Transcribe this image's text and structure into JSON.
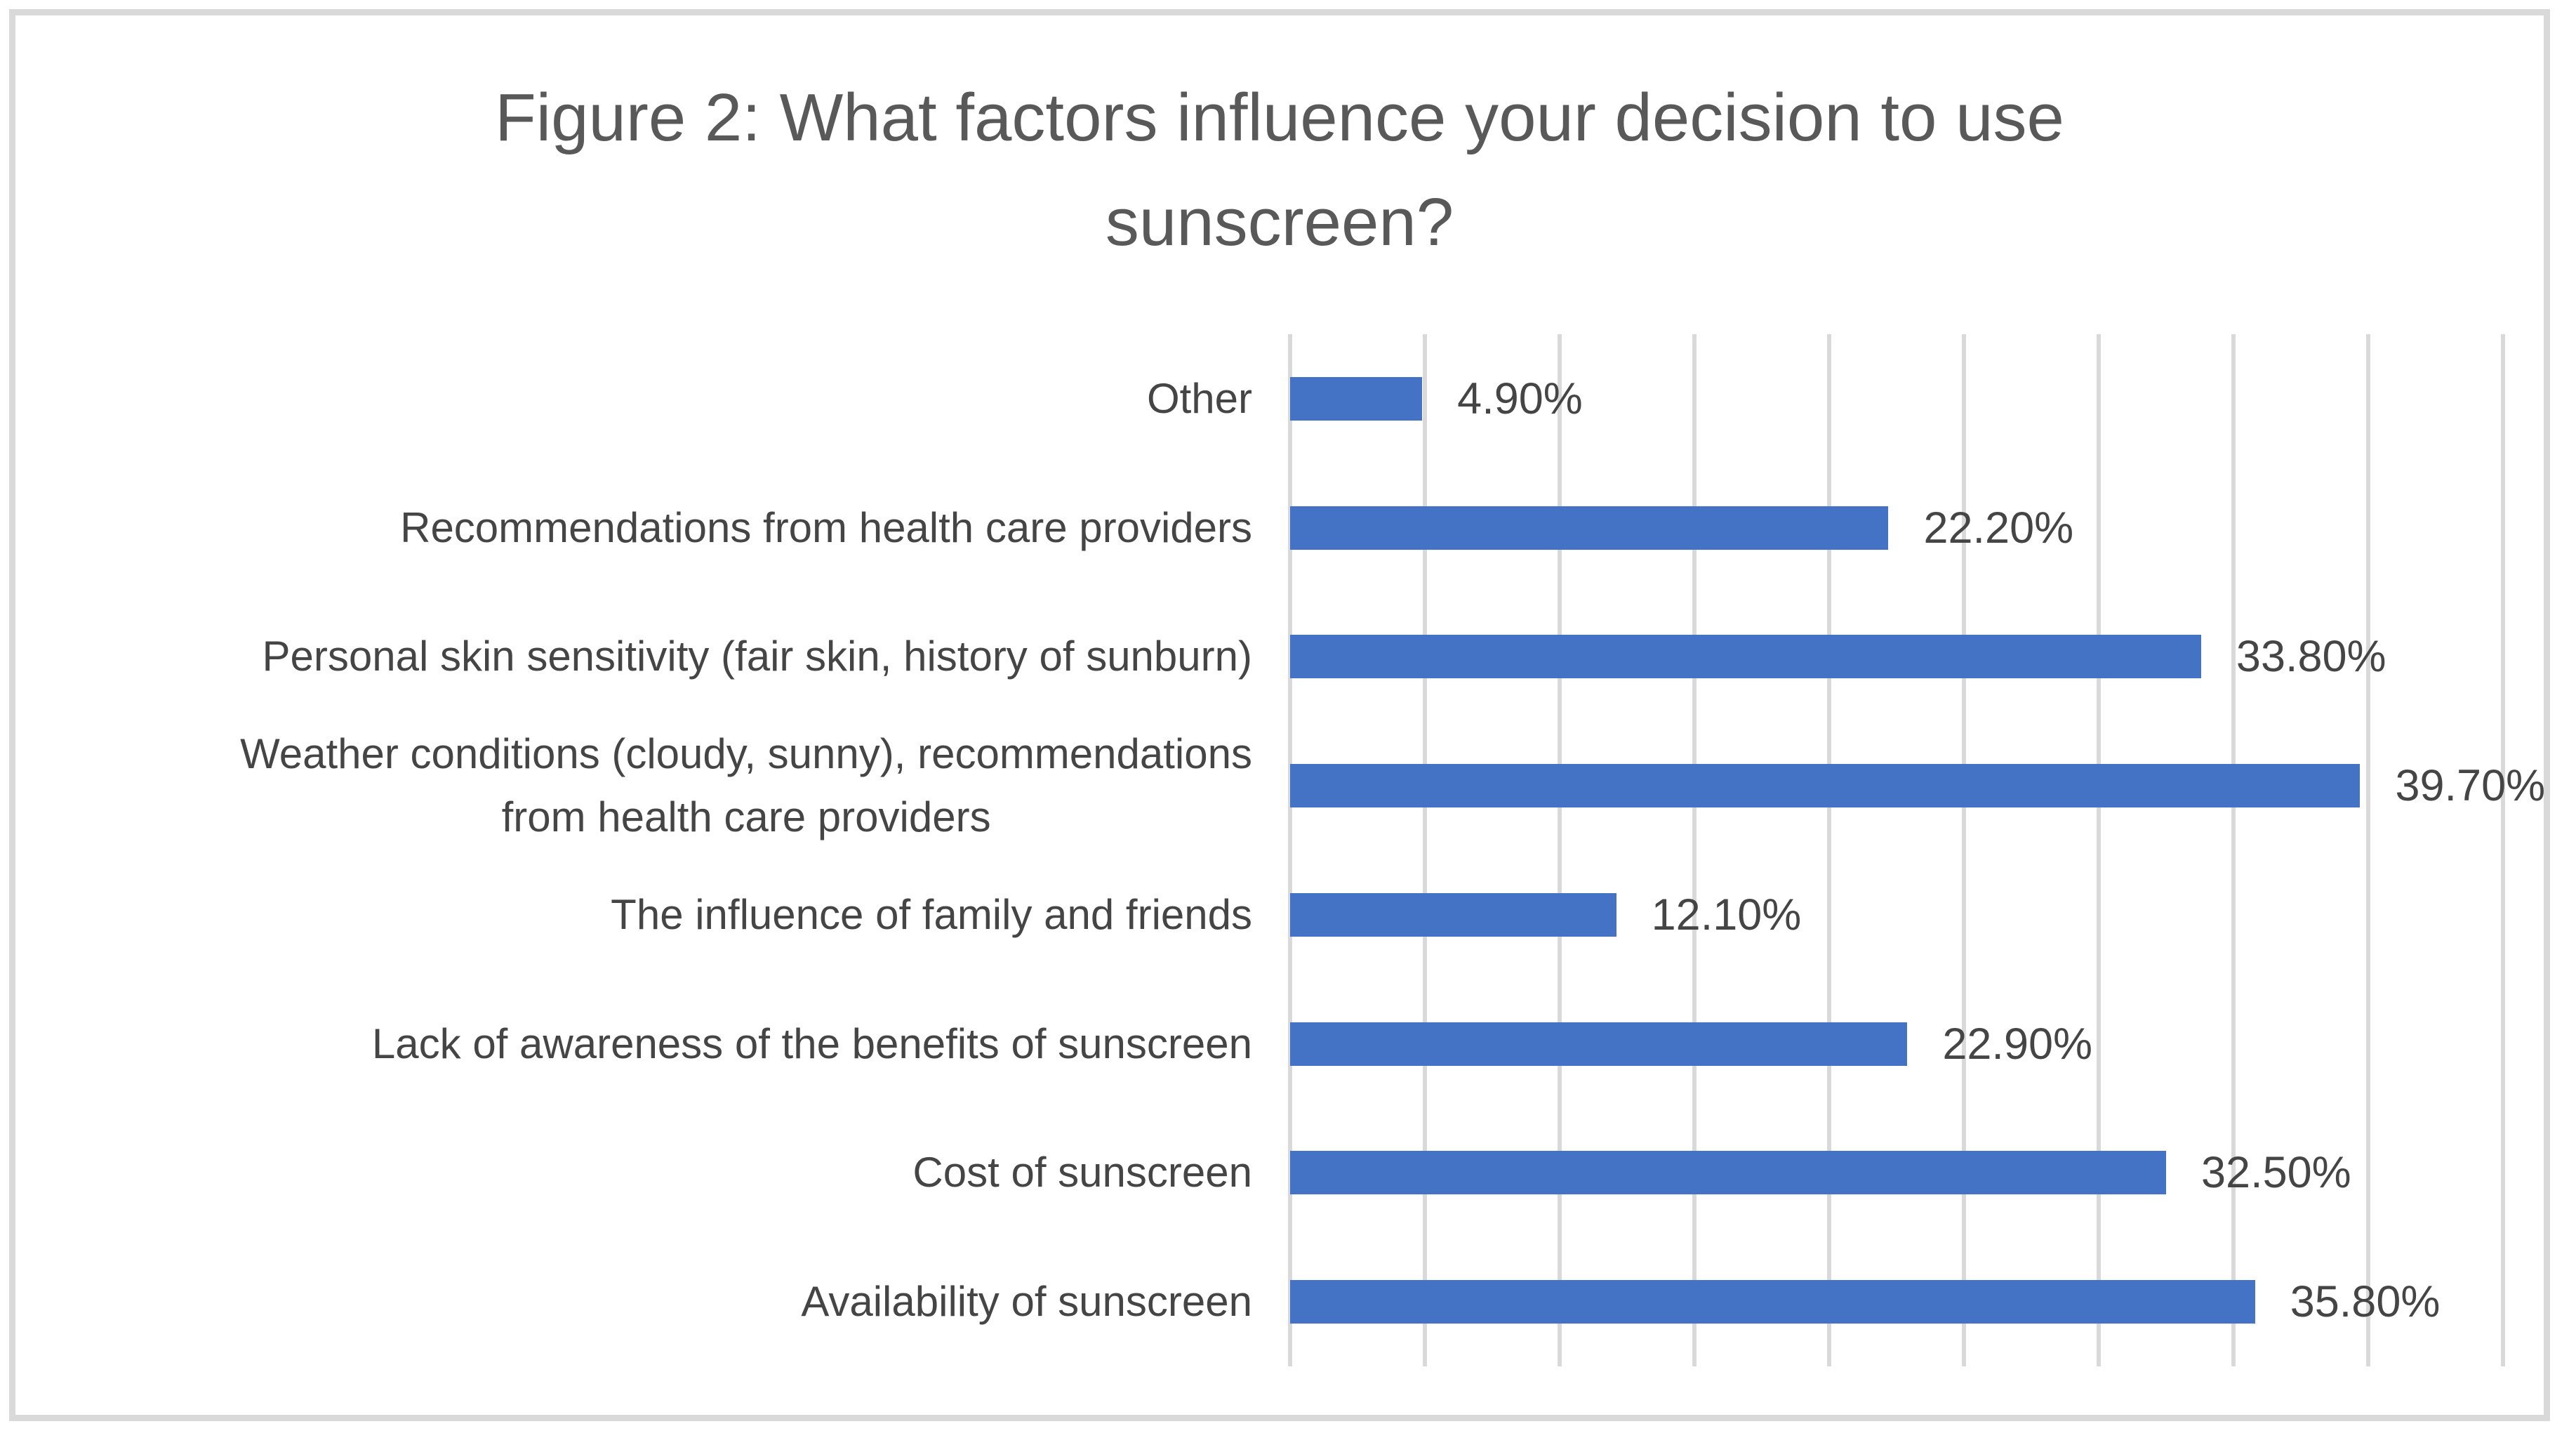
{
  "figure": {
    "title": "Figure 2: What factors influence your decision to use sunscreen?",
    "title_line1": "Figure 2: What factors influence your decision to use",
    "title_line2": "sunscreen?"
  },
  "colors": {
    "bar": "#4472C4",
    "gridline": "#D9D9D9",
    "frame_border": "#D9D9D9",
    "title_text": "#595959",
    "label_text": "#454545",
    "background": "#FFFFFF"
  },
  "chart_data": {
    "type": "bar",
    "orientation": "horizontal",
    "title": "Figure 2: What factors influence your decision to use sunscreen?",
    "categories": [
      "Other",
      "Recommendations from health care providers",
      "Personal skin sensitivity (fair skin, history of sunburn)",
      "Weather conditions (cloudy, sunny), recommendations from health care providers",
      "The influence of family and friends",
      "Lack of awareness of the benefits of sunscreen",
      "Cost of sunscreen",
      "Availability of sunscreen"
    ],
    "categories_display": [
      [
        "Other"
      ],
      [
        "Recommendations from health care providers"
      ],
      [
        "Personal skin sensitivity (fair skin, history of sunburn)"
      ],
      [
        "Weather conditions (cloudy, sunny), recommendations",
        "from health care providers"
      ],
      [
        "The influence of family and friends"
      ],
      [
        "Lack of awareness of the benefits of sunscreen"
      ],
      [
        "Cost of sunscreen"
      ],
      [
        "Availability of sunscreen"
      ]
    ],
    "values": [
      4.9,
      22.2,
      33.8,
      39.7,
      12.1,
      22.9,
      32.5,
      35.8
    ],
    "value_labels": [
      "4.90%",
      "22.20%",
      "33.80%",
      "39.70%",
      "12.10%",
      "22.90%",
      "32.50%",
      "35.80%"
    ],
    "xlabel": "",
    "ylabel": "",
    "xlim": [
      0,
      45
    ],
    "gridline_step": 5,
    "grid": "vertical-gridlines-on",
    "x_tick_labels_visible": false,
    "legend": "none",
    "data_labels_position": "outside-end",
    "bar_color": "#4472C4"
  }
}
